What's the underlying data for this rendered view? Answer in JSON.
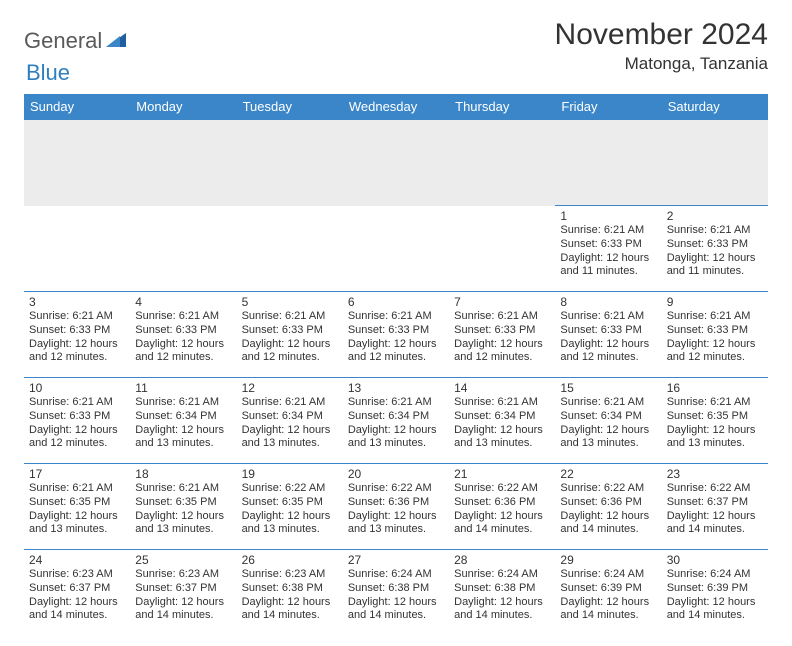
{
  "logo": {
    "text_general": "General",
    "text_blue": "Blue"
  },
  "title": "November 2024",
  "subtitle": "Matonga, Tanzania",
  "colors": {
    "header_bg": "#3a86c8",
    "header_fg": "#ffffff",
    "cell_border": "#3a86c8",
    "spacer_bg": "#ececec",
    "text": "#333333",
    "logo_gray": "#5a5a5a",
    "logo_blue": "#2f7fbf"
  },
  "weekdays": [
    "Sunday",
    "Monday",
    "Tuesday",
    "Wednesday",
    "Thursday",
    "Friday",
    "Saturday"
  ],
  "weeks": [
    [
      null,
      null,
      null,
      null,
      null,
      {
        "day": "1",
        "sunrise": "Sunrise: 6:21 AM",
        "sunset": "Sunset: 6:33 PM",
        "daylight": "Daylight: 12 hours and 11 minutes."
      },
      {
        "day": "2",
        "sunrise": "Sunrise: 6:21 AM",
        "sunset": "Sunset: 6:33 PM",
        "daylight": "Daylight: 12 hours and 11 minutes."
      }
    ],
    [
      {
        "day": "3",
        "sunrise": "Sunrise: 6:21 AM",
        "sunset": "Sunset: 6:33 PM",
        "daylight": "Daylight: 12 hours and 12 minutes."
      },
      {
        "day": "4",
        "sunrise": "Sunrise: 6:21 AM",
        "sunset": "Sunset: 6:33 PM",
        "daylight": "Daylight: 12 hours and 12 minutes."
      },
      {
        "day": "5",
        "sunrise": "Sunrise: 6:21 AM",
        "sunset": "Sunset: 6:33 PM",
        "daylight": "Daylight: 12 hours and 12 minutes."
      },
      {
        "day": "6",
        "sunrise": "Sunrise: 6:21 AM",
        "sunset": "Sunset: 6:33 PM",
        "daylight": "Daylight: 12 hours and 12 minutes."
      },
      {
        "day": "7",
        "sunrise": "Sunrise: 6:21 AM",
        "sunset": "Sunset: 6:33 PM",
        "daylight": "Daylight: 12 hours and 12 minutes."
      },
      {
        "day": "8",
        "sunrise": "Sunrise: 6:21 AM",
        "sunset": "Sunset: 6:33 PM",
        "daylight": "Daylight: 12 hours and 12 minutes."
      },
      {
        "day": "9",
        "sunrise": "Sunrise: 6:21 AM",
        "sunset": "Sunset: 6:33 PM",
        "daylight": "Daylight: 12 hours and 12 minutes."
      }
    ],
    [
      {
        "day": "10",
        "sunrise": "Sunrise: 6:21 AM",
        "sunset": "Sunset: 6:33 PM",
        "daylight": "Daylight: 12 hours and 12 minutes."
      },
      {
        "day": "11",
        "sunrise": "Sunrise: 6:21 AM",
        "sunset": "Sunset: 6:34 PM",
        "daylight": "Daylight: 12 hours and 13 minutes."
      },
      {
        "day": "12",
        "sunrise": "Sunrise: 6:21 AM",
        "sunset": "Sunset: 6:34 PM",
        "daylight": "Daylight: 12 hours and 13 minutes."
      },
      {
        "day": "13",
        "sunrise": "Sunrise: 6:21 AM",
        "sunset": "Sunset: 6:34 PM",
        "daylight": "Daylight: 12 hours and 13 minutes."
      },
      {
        "day": "14",
        "sunrise": "Sunrise: 6:21 AM",
        "sunset": "Sunset: 6:34 PM",
        "daylight": "Daylight: 12 hours and 13 minutes."
      },
      {
        "day": "15",
        "sunrise": "Sunrise: 6:21 AM",
        "sunset": "Sunset: 6:34 PM",
        "daylight": "Daylight: 12 hours and 13 minutes."
      },
      {
        "day": "16",
        "sunrise": "Sunrise: 6:21 AM",
        "sunset": "Sunset: 6:35 PM",
        "daylight": "Daylight: 12 hours and 13 minutes."
      }
    ],
    [
      {
        "day": "17",
        "sunrise": "Sunrise: 6:21 AM",
        "sunset": "Sunset: 6:35 PM",
        "daylight": "Daylight: 12 hours and 13 minutes."
      },
      {
        "day": "18",
        "sunrise": "Sunrise: 6:21 AM",
        "sunset": "Sunset: 6:35 PM",
        "daylight": "Daylight: 12 hours and 13 minutes."
      },
      {
        "day": "19",
        "sunrise": "Sunrise: 6:22 AM",
        "sunset": "Sunset: 6:35 PM",
        "daylight": "Daylight: 12 hours and 13 minutes."
      },
      {
        "day": "20",
        "sunrise": "Sunrise: 6:22 AM",
        "sunset": "Sunset: 6:36 PM",
        "daylight": "Daylight: 12 hours and 13 minutes."
      },
      {
        "day": "21",
        "sunrise": "Sunrise: 6:22 AM",
        "sunset": "Sunset: 6:36 PM",
        "daylight": "Daylight: 12 hours and 14 minutes."
      },
      {
        "day": "22",
        "sunrise": "Sunrise: 6:22 AM",
        "sunset": "Sunset: 6:36 PM",
        "daylight": "Daylight: 12 hours and 14 minutes."
      },
      {
        "day": "23",
        "sunrise": "Sunrise: 6:22 AM",
        "sunset": "Sunset: 6:37 PM",
        "daylight": "Daylight: 12 hours and 14 minutes."
      }
    ],
    [
      {
        "day": "24",
        "sunrise": "Sunrise: 6:23 AM",
        "sunset": "Sunset: 6:37 PM",
        "daylight": "Daylight: 12 hours and 14 minutes."
      },
      {
        "day": "25",
        "sunrise": "Sunrise: 6:23 AM",
        "sunset": "Sunset: 6:37 PM",
        "daylight": "Daylight: 12 hours and 14 minutes."
      },
      {
        "day": "26",
        "sunrise": "Sunrise: 6:23 AM",
        "sunset": "Sunset: 6:38 PM",
        "daylight": "Daylight: 12 hours and 14 minutes."
      },
      {
        "day": "27",
        "sunrise": "Sunrise: 6:24 AM",
        "sunset": "Sunset: 6:38 PM",
        "daylight": "Daylight: 12 hours and 14 minutes."
      },
      {
        "day": "28",
        "sunrise": "Sunrise: 6:24 AM",
        "sunset": "Sunset: 6:38 PM",
        "daylight": "Daylight: 12 hours and 14 minutes."
      },
      {
        "day": "29",
        "sunrise": "Sunrise: 6:24 AM",
        "sunset": "Sunset: 6:39 PM",
        "daylight": "Daylight: 12 hours and 14 minutes."
      },
      {
        "day": "30",
        "sunrise": "Sunrise: 6:24 AM",
        "sunset": "Sunset: 6:39 PM",
        "daylight": "Daylight: 12 hours and 14 minutes."
      }
    ]
  ]
}
